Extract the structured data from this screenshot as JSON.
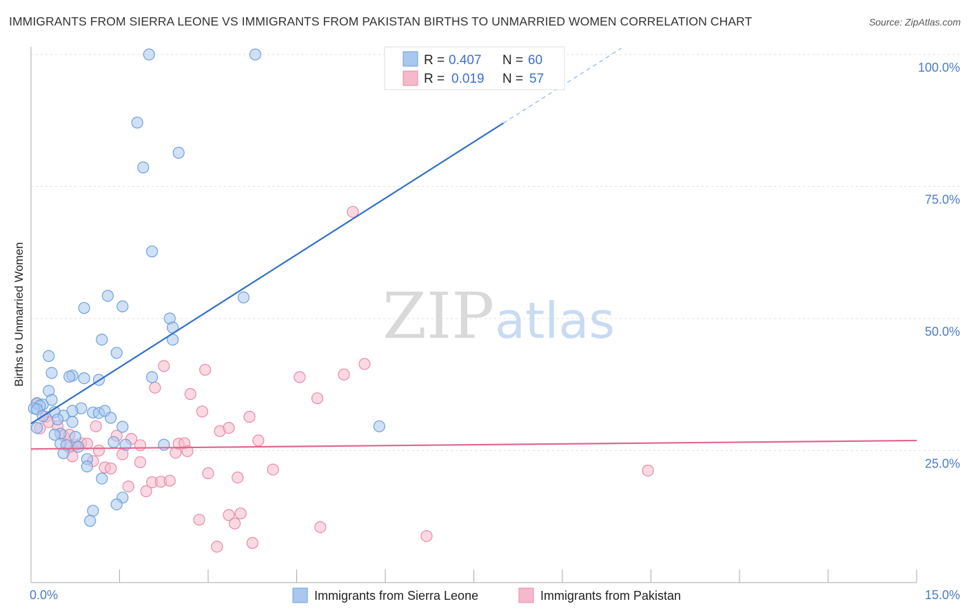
{
  "header": {
    "title": "IMMIGRANTS FROM SIERRA LEONE VS IMMIGRANTS FROM PAKISTAN BIRTHS TO UNMARRIED WOMEN CORRELATION CHART",
    "source": "Source: ZipAtlas.com"
  },
  "watermark": {
    "zip": "ZIP",
    "atlas": "atlas"
  },
  "legend": {
    "r_label": "R =",
    "n_label": "N =",
    "series": [
      {
        "r": "0.407",
        "n": "60"
      },
      {
        "r": "0.019",
        "n": "57"
      }
    ]
  },
  "colors": {
    "blue_fill": "#a9c8ef",
    "blue_stroke": "#6d9fdc",
    "blue_line": "#2f6fc9",
    "pink_fill": "#f6b9cc",
    "pink_stroke": "#e88aa6",
    "pink_line": "#e0678f",
    "axis_text": "#4a7cc7",
    "grid": "#dddddd"
  },
  "chart_data": {
    "type": "scatter",
    "title": "IMMIGRANTS FROM SIERRA LEONE VS IMMIGRANTS FROM PAKISTAN BIRTHS TO UNMARRIED WOMEN CORRELATION CHART",
    "xlabel": "",
    "ylabel": "Births to Unmarried Women",
    "xlim": [
      0,
      15
    ],
    "ylim": [
      0,
      102
    ],
    "x_tick_labels": [
      "0.0%",
      "15.0%"
    ],
    "y_ticks": [
      25,
      50,
      75,
      100
    ],
    "y_tick_labels": [
      "25.0%",
      "50.0%",
      "75.0%",
      "100.0%"
    ],
    "grid": true,
    "legend_position": "top-center",
    "series": [
      {
        "name": "Immigrants from Sierra Leone",
        "r": 0.407,
        "n": 60,
        "trend": {
          "x0": 0.0,
          "y0": 30.1,
          "x1": 8.0,
          "y1": 87.0,
          "dash_to_x": 10.0,
          "dash_to_y": 101.2
        },
        "points": [
          [
            2.0,
            100.0
          ],
          [
            3.8,
            100.0
          ],
          [
            1.8,
            87.1
          ],
          [
            2.5,
            81.4
          ],
          [
            1.9,
            78.6
          ],
          [
            2.05,
            62.7
          ],
          [
            3.6,
            54.0
          ],
          [
            1.3,
            54.3
          ],
          [
            0.9,
            52.0
          ],
          [
            1.55,
            52.3
          ],
          [
            2.35,
            50.0
          ],
          [
            2.4,
            48.3
          ],
          [
            1.2,
            46.0
          ],
          [
            2.4,
            46.0
          ],
          [
            1.45,
            43.5
          ],
          [
            0.3,
            42.9
          ],
          [
            2.05,
            38.9
          ],
          [
            0.35,
            39.7
          ],
          [
            0.7,
            39.2
          ],
          [
            0.65,
            39.0
          ],
          [
            0.9,
            38.7
          ],
          [
            1.15,
            38.4
          ],
          [
            0.3,
            36.3
          ],
          [
            0.1,
            34.0
          ],
          [
            0.35,
            34.6
          ],
          [
            0.2,
            33.7
          ],
          [
            0.15,
            33.5
          ],
          [
            0.05,
            33.0
          ],
          [
            0.85,
            33.0
          ],
          [
            0.7,
            32.5
          ],
          [
            0.1,
            32.8
          ],
          [
            0.4,
            32.3
          ],
          [
            1.05,
            32.2
          ],
          [
            1.15,
            32.1
          ],
          [
            1.25,
            32.5
          ],
          [
            0.55,
            31.6
          ],
          [
            0.2,
            31.5
          ],
          [
            0.45,
            30.9
          ],
          [
            0.7,
            30.4
          ],
          [
            1.35,
            31.2
          ],
          [
            0.1,
            29.3
          ],
          [
            1.55,
            29.5
          ],
          [
            5.9,
            29.6
          ],
          [
            0.5,
            28.2
          ],
          [
            0.4,
            28.0
          ],
          [
            0.75,
            27.6
          ],
          [
            1.4,
            26.6
          ],
          [
            0.5,
            26.3
          ],
          [
            0.6,
            26.0
          ],
          [
            0.8,
            25.7
          ],
          [
            1.6,
            26.1
          ],
          [
            2.25,
            26.1
          ],
          [
            0.55,
            24.5
          ],
          [
            0.95,
            23.4
          ],
          [
            0.95,
            22.0
          ],
          [
            1.2,
            19.7
          ],
          [
            1.55,
            16.1
          ],
          [
            1.45,
            14.8
          ],
          [
            1.05,
            13.6
          ],
          [
            1.0,
            11.7
          ]
        ]
      },
      {
        "name": "Immigrants from Pakistan",
        "r": 0.019,
        "n": 57,
        "trend": {
          "x0": 0.0,
          "y0": 25.3,
          "x1": 15.0,
          "y1": 26.9
        },
        "points": [
          [
            0.1,
            33.8
          ],
          [
            0.25,
            31.4
          ],
          [
            0.3,
            30.4
          ],
          [
            0.45,
            29.6
          ],
          [
            0.15,
            29.2
          ],
          [
            0.55,
            27.8
          ],
          [
            0.65,
            28.0
          ],
          [
            0.85,
            26.4
          ],
          [
            0.75,
            26.0
          ],
          [
            0.95,
            26.3
          ],
          [
            0.65,
            25.6
          ],
          [
            1.15,
            25.0
          ],
          [
            0.7,
            23.9
          ],
          [
            1.05,
            23.0
          ],
          [
            1.25,
            21.8
          ],
          [
            1.35,
            21.6
          ],
          [
            1.1,
            29.6
          ],
          [
            1.45,
            27.8
          ],
          [
            1.7,
            27.2
          ],
          [
            1.85,
            26.0
          ],
          [
            1.55,
            24.3
          ],
          [
            1.85,
            22.8
          ],
          [
            1.65,
            18.2
          ],
          [
            1.95,
            17.3
          ],
          [
            2.05,
            19.0
          ],
          [
            2.2,
            19.1
          ],
          [
            2.35,
            19.3
          ],
          [
            2.1,
            36.9
          ],
          [
            2.25,
            41.0
          ],
          [
            2.45,
            24.6
          ],
          [
            2.5,
            26.3
          ],
          [
            2.6,
            26.4
          ],
          [
            2.65,
            24.9
          ],
          [
            2.7,
            35.7
          ],
          [
            2.9,
            32.4
          ],
          [
            2.95,
            40.3
          ],
          [
            3.2,
            28.7
          ],
          [
            3.35,
            29.3
          ],
          [
            3.0,
            20.7
          ],
          [
            3.5,
            19.9
          ],
          [
            3.7,
            31.4
          ],
          [
            3.85,
            26.9
          ],
          [
            4.1,
            21.4
          ],
          [
            2.85,
            11.9
          ],
          [
            3.35,
            12.8
          ],
          [
            3.55,
            13.1
          ],
          [
            3.45,
            11.2
          ],
          [
            3.75,
            7.5
          ],
          [
            3.15,
            6.8
          ],
          [
            4.55,
            38.9
          ],
          [
            4.85,
            34.9
          ],
          [
            5.3,
            39.4
          ],
          [
            5.65,
            41.4
          ],
          [
            5.45,
            70.2
          ],
          [
            4.9,
            10.5
          ],
          [
            6.7,
            8.8
          ],
          [
            10.45,
            21.2
          ]
        ]
      }
    ]
  }
}
